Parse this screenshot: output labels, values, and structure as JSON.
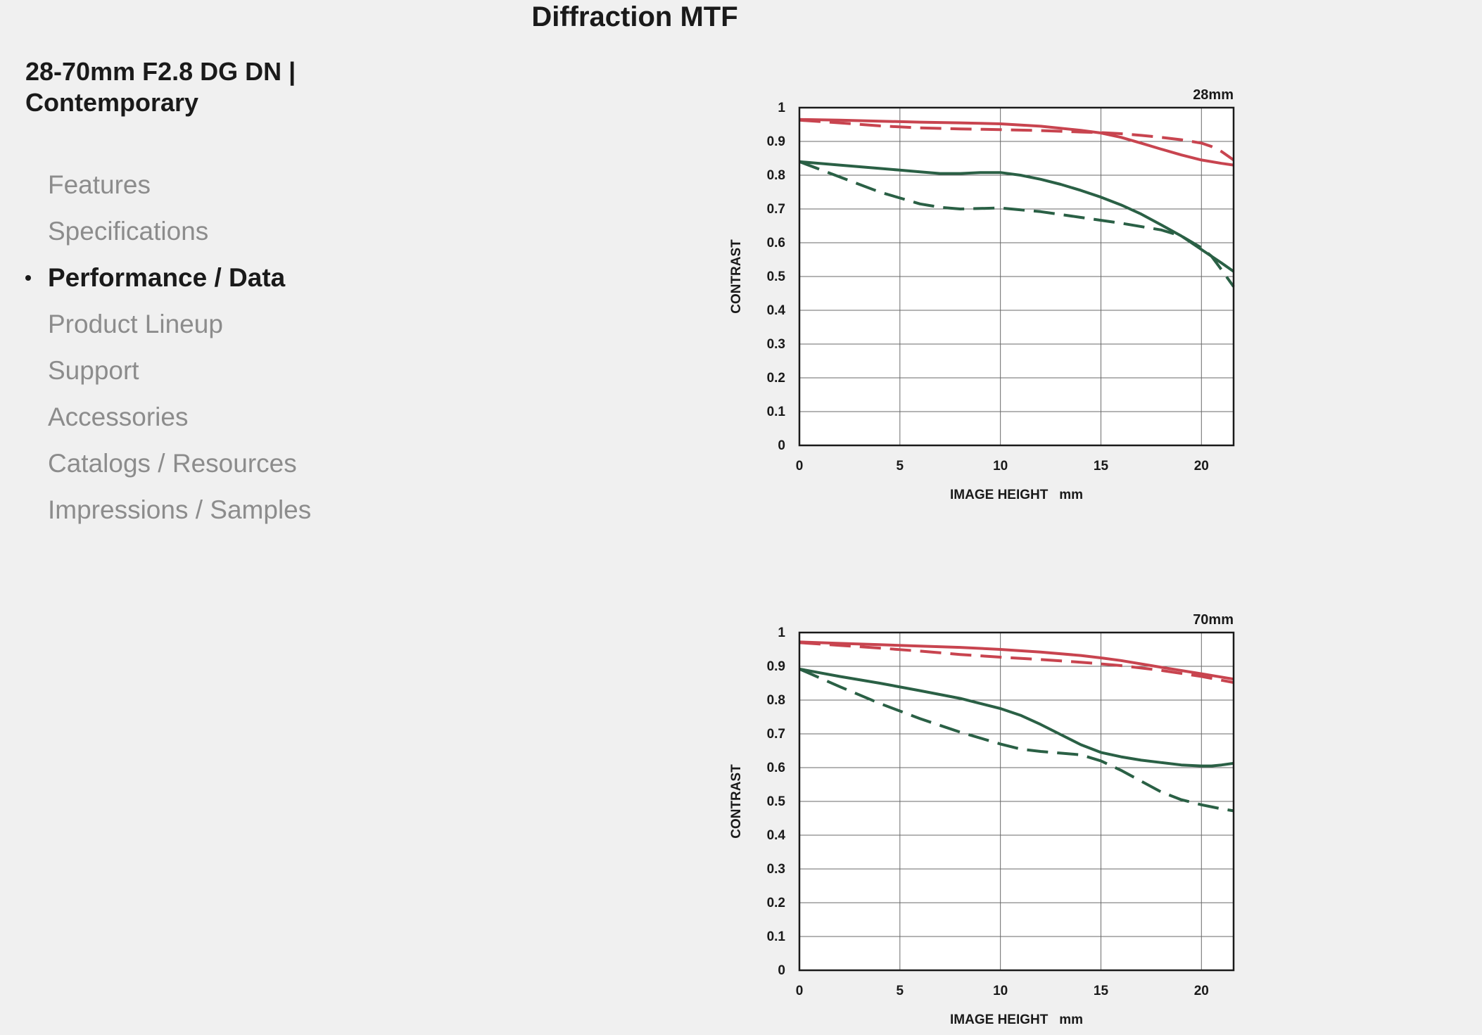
{
  "page": {
    "title": "Diffraction MTF"
  },
  "product": {
    "title_line1": "28-70mm F2.8 DG DN |",
    "title_line2": "Contemporary"
  },
  "nav": {
    "items": [
      {
        "label": "Features",
        "active": false
      },
      {
        "label": "Specifications",
        "active": false
      },
      {
        "label": "Performance / Data",
        "active": true
      },
      {
        "label": "Product Lineup",
        "active": false
      },
      {
        "label": "Support",
        "active": false
      },
      {
        "label": "Accessories",
        "active": false
      },
      {
        "label": "Catalogs / Resources",
        "active": false
      },
      {
        "label": "Impressions / Samples",
        "active": false
      }
    ]
  },
  "colors": {
    "red": "#c8444f",
    "green": "#2a6045",
    "grid": "#6a6a6a",
    "plot_bg": "#ffffff"
  },
  "chart_data": [
    {
      "type": "line",
      "title": "28mm",
      "xlabel": "IMAGE HEIGHT   mm",
      "ylabel": "CONTRAST",
      "xlim": [
        0,
        21.6
      ],
      "ylim": [
        0,
        1
      ],
      "xticks": [
        0,
        5,
        10,
        15,
        20
      ],
      "yticks": [
        0,
        0.1,
        0.2,
        0.3,
        0.4,
        0.5,
        0.6,
        0.7,
        0.8,
        0.9,
        1
      ],
      "ytick_labels": [
        "0",
        "0.1",
        "0.2",
        "0.3",
        "0.4",
        "0.5",
        "0.6",
        "0.7",
        "0.8",
        "0.9",
        "1"
      ],
      "grid": true,
      "series": [
        {
          "color": "red",
          "dash": false,
          "x": [
            0,
            2,
            4,
            6,
            8,
            10,
            12,
            14,
            15,
            16,
            17,
            18,
            19,
            20,
            21,
            21.6
          ],
          "y": [
            0.965,
            0.963,
            0.96,
            0.957,
            0.955,
            0.952,
            0.945,
            0.933,
            0.925,
            0.912,
            0.895,
            0.877,
            0.86,
            0.845,
            0.835,
            0.83
          ]
        },
        {
          "color": "red",
          "dash": true,
          "x": [
            0,
            2,
            4,
            6,
            8,
            10,
            12,
            14,
            15,
            16,
            17,
            18,
            19,
            20,
            20.5,
            21,
            21.6
          ],
          "y": [
            0.963,
            0.955,
            0.946,
            0.94,
            0.937,
            0.935,
            0.932,
            0.928,
            0.926,
            0.923,
            0.918,
            0.912,
            0.905,
            0.895,
            0.885,
            0.87,
            0.845
          ]
        },
        {
          "color": "green",
          "dash": false,
          "x": [
            0,
            2,
            4,
            5,
            6,
            7,
            8,
            9,
            10,
            11,
            12,
            13,
            14,
            15,
            16,
            17,
            18,
            19,
            20,
            21,
            21.6
          ],
          "y": [
            0.84,
            0.83,
            0.82,
            0.815,
            0.81,
            0.805,
            0.805,
            0.808,
            0.808,
            0.8,
            0.788,
            0.773,
            0.755,
            0.735,
            0.712,
            0.685,
            0.653,
            0.62,
            0.58,
            0.54,
            0.515
          ]
        },
        {
          "color": "green",
          "dash": true,
          "x": [
            0,
            2,
            4,
            6,
            7,
            8,
            10,
            12,
            14,
            16,
            18,
            19,
            20,
            20.5,
            21,
            21.6
          ],
          "y": [
            0.84,
            0.795,
            0.75,
            0.715,
            0.705,
            0.7,
            0.703,
            0.692,
            0.675,
            0.658,
            0.638,
            0.62,
            0.585,
            0.56,
            0.52,
            0.47
          ]
        }
      ]
    },
    {
      "type": "line",
      "title": "70mm",
      "xlabel": "IMAGE HEIGHT   mm",
      "ylabel": "CONTRAST",
      "xlim": [
        0,
        21.6
      ],
      "ylim": [
        0,
        1
      ],
      "xticks": [
        0,
        5,
        10,
        15,
        20
      ],
      "yticks": [
        0,
        0.1,
        0.2,
        0.3,
        0.4,
        0.5,
        0.6,
        0.7,
        0.8,
        0.9,
        1
      ],
      "ytick_labels": [
        "0",
        "0.1",
        "0.2",
        "0.3",
        "0.4",
        "0.5",
        "0.6",
        "0.7",
        "0.8",
        "0.9",
        "1"
      ],
      "grid": true,
      "series": [
        {
          "color": "red",
          "dash": false,
          "x": [
            0,
            2,
            4,
            6,
            8,
            10,
            12,
            14,
            15,
            16,
            18,
            20,
            21.6
          ],
          "y": [
            0.972,
            0.968,
            0.964,
            0.96,
            0.956,
            0.95,
            0.942,
            0.932,
            0.925,
            0.917,
            0.897,
            0.878,
            0.862
          ]
        },
        {
          "color": "red",
          "dash": true,
          "x": [
            0,
            2,
            4,
            6,
            8,
            10,
            12,
            14,
            16,
            18,
            20,
            21.6
          ],
          "y": [
            0.97,
            0.962,
            0.954,
            0.945,
            0.935,
            0.927,
            0.92,
            0.912,
            0.902,
            0.888,
            0.87,
            0.852
          ]
        },
        {
          "color": "green",
          "dash": false,
          "x": [
            0,
            2,
            4,
            6,
            8,
            10,
            11,
            12,
            13,
            14,
            15,
            16,
            17,
            18,
            19,
            20,
            20.5,
            21,
            21.6
          ],
          "y": [
            0.892,
            0.87,
            0.85,
            0.828,
            0.805,
            0.775,
            0.755,
            0.728,
            0.698,
            0.668,
            0.645,
            0.632,
            0.622,
            0.615,
            0.608,
            0.605,
            0.605,
            0.608,
            0.613
          ]
        },
        {
          "color": "green",
          "dash": true,
          "x": [
            0,
            2,
            4,
            6,
            8,
            10,
            11,
            12,
            13,
            14,
            15,
            16,
            17,
            18,
            19,
            20,
            21,
            21.6
          ],
          "y": [
            0.892,
            0.84,
            0.79,
            0.745,
            0.705,
            0.67,
            0.655,
            0.648,
            0.643,
            0.638,
            0.62,
            0.592,
            0.56,
            0.528,
            0.505,
            0.49,
            0.478,
            0.472
          ]
        }
      ]
    }
  ]
}
